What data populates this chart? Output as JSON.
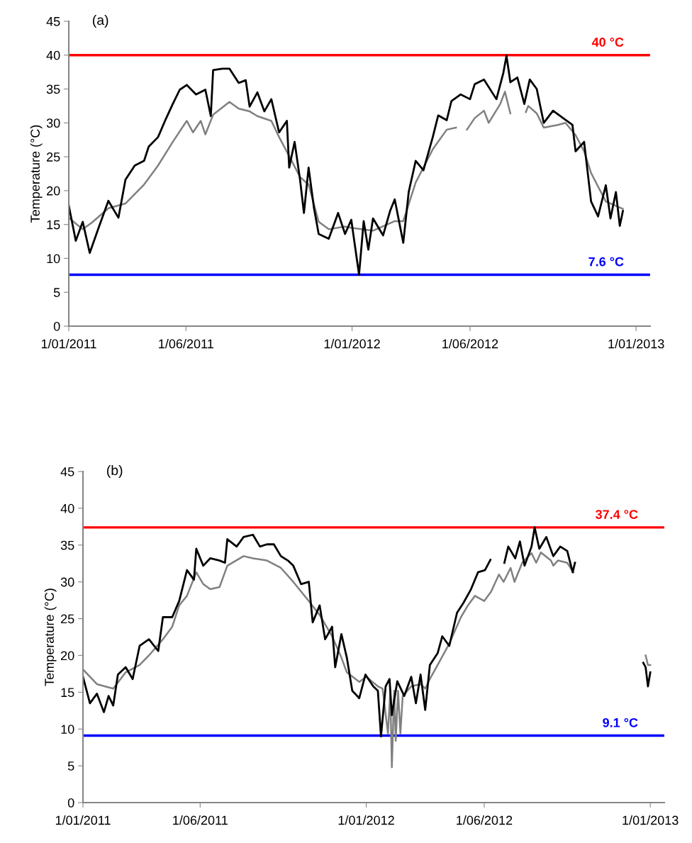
{
  "chart_data": [
    {
      "type": "line",
      "title": "(a)",
      "ylabel": "Temperature (°C)",
      "xlim": [
        "2011-01-01",
        "2013-01-19"
      ],
      "ylim": [
        0,
        45
      ],
      "yticks": [
        0,
        5,
        10,
        15,
        20,
        25,
        30,
        35,
        40,
        45
      ],
      "xticks": [
        {
          "value": "2011-01-01",
          "label": "1/01/2011"
        },
        {
          "value": "2011-06-01",
          "label": "1/06/2011"
        },
        {
          "value": "2012-01-01",
          "label": "1/01/2012"
        },
        {
          "value": "2012-06-01",
          "label": "1/06/2012"
        },
        {
          "value": "2013-01-01",
          "label": "1/01/2013"
        }
      ],
      "grid": false,
      "marker": "none",
      "line_style": "solid",
      "ref_lines": [
        {
          "axis": "y",
          "value": 40,
          "label": "40 °C",
          "color": "#ff0000"
        },
        {
          "axis": "y",
          "value": 7.6,
          "label": "7.6 °C",
          "color": "#0000ff"
        }
      ],
      "series": [
        {
          "color": "#808080",
          "x": [
            "2011-01-01",
            "2011-01-19",
            "2011-01-31",
            "2011-02-21",
            "2011-03-15",
            "2011-04-08",
            "2011-04-26",
            "2011-05-15",
            "2011-06-02",
            "2011-06-10",
            "2011-06-20",
            "2011-06-26",
            "2011-07-06",
            "2011-07-27",
            "2011-08-08",
            "2011-08-22",
            "2011-09-01",
            "2011-09-19",
            "2011-09-29",
            "2011-10-12",
            "2011-10-26",
            "2011-11-06",
            "2011-11-19",
            "2011-12-02",
            "2011-12-23",
            "2012-01-01",
            "2012-01-28",
            "2012-02-25",
            "2012-03-07",
            "2012-03-23",
            "2012-04-14",
            "2012-05-02",
            "2012-05-14",
            "2012-05-20",
            "2012-05-28",
            "2012-06-07",
            "2012-06-19",
            "2012-06-25",
            "2012-07-10",
            "2012-07-16",
            "2012-07-23",
            "2012-08-02",
            "2012-08-12",
            "2012-08-15",
            "2012-08-26",
            "2012-09-04",
            "2012-09-22",
            "2012-10-02",
            "2012-10-15",
            "2012-10-26",
            "2012-11-04",
            "2012-11-23",
            "2012-12-15"
          ],
          "values": [
            16,
            14.3,
            15.3,
            17.4,
            18.1,
            20.9,
            23.7,
            27.2,
            30.3,
            28.6,
            30.3,
            28.3,
            31.2,
            33.1,
            32.1,
            31.7,
            31,
            30.3,
            27.9,
            25.1,
            22,
            20.9,
            15.4,
            14.3,
            14.7,
            14.5,
            14.1,
            15.5,
            15.5,
            21.2,
            26.1,
            29,
            29.3,
            null,
            29,
            30.7,
            31.8,
            30,
            32.8,
            34.6,
            31.4,
            null,
            31.6,
            32.5,
            31.4,
            29.3,
            29.7,
            30,
            28.2,
            25.8,
            22.6,
            18.4,
            17.3
          ]
        },
        {
          "color": "#000000",
          "x": [
            "2011-01-01",
            "2011-01-10",
            "2011-01-19",
            "2011-01-28",
            "2011-02-09",
            "2011-02-21",
            "2011-03-06",
            "2011-03-15",
            "2011-03-27",
            "2011-04-08",
            "2011-04-14",
            "2011-04-26",
            "2011-05-05",
            "2011-05-15",
            "2011-05-24",
            "2011-06-02",
            "2011-06-14",
            "2011-06-26",
            "2011-07-03",
            "2011-07-06",
            "2011-07-18",
            "2011-07-27",
            "2011-08-08",
            "2011-08-17",
            "2011-08-22",
            "2011-09-01",
            "2011-09-10",
            "2011-09-19",
            "2011-09-29",
            "2011-10-09",
            "2011-10-12",
            "2011-10-19",
            "2011-10-26",
            "2011-10-31",
            "2011-11-06",
            "2011-11-13",
            "2011-11-19",
            "2011-12-02",
            "2011-12-14",
            "2011-12-23",
            "2011-12-31",
            "2012-01-10",
            "2012-01-16",
            "2012-01-22",
            "2012-01-28",
            "2012-02-10",
            "2012-02-19",
            "2012-02-25",
            "2012-03-07",
            "2012-03-14",
            "2012-03-23",
            "2012-04-02",
            "2012-04-14",
            "2012-04-21",
            "2012-05-02",
            "2012-05-08",
            "2012-05-20",
            "2012-06-01",
            "2012-06-07",
            "2012-06-19",
            "2012-07-05",
            "2012-07-14",
            "2012-07-18",
            "2012-07-23",
            "2012-08-01",
            "2012-08-10",
            "2012-08-17",
            "2012-08-26",
            "2012-09-04",
            "2012-09-16",
            "2012-09-29",
            "2012-10-11",
            "2012-10-15",
            "2012-10-26",
            "2012-11-04",
            "2012-11-13",
            "2012-11-23",
            "2012-11-29",
            "2012-12-06",
            "2012-12-11",
            "2012-12-15"
          ],
          "values": [
            17.8,
            12.6,
            15.4,
            10.8,
            14.7,
            18.5,
            16,
            21.6,
            23.7,
            24.4,
            26.5,
            27.9,
            30.3,
            32.8,
            34.9,
            35.6,
            34.2,
            34.9,
            31,
            37.8,
            38,
            38,
            35.9,
            36.3,
            32.4,
            34.5,
            31.7,
            33.5,
            28.6,
            30.3,
            23.4,
            27.2,
            21.6,
            16.7,
            23.4,
            17.4,
            13.6,
            12.9,
            16.7,
            13.6,
            15.7,
            7.6,
            15.5,
            11.3,
            15.9,
            13.4,
            17,
            18.7,
            12.3,
            19.8,
            24.4,
            23,
            27.9,
            31.1,
            30.4,
            33.2,
            34.2,
            33.5,
            35.7,
            36.4,
            33.5,
            37.4,
            39.9,
            36,
            36.7,
            32.8,
            36.4,
            35,
            30,
            31.8,
            30.7,
            29.7,
            25.8,
            27.2,
            18.4,
            16.2,
            20.8,
            15.9,
            19.8,
            14.8,
            17
          ]
        }
      ]
    },
    {
      "type": "line",
      "title": "(b)",
      "ylabel": "Temperature (°C)",
      "xlim": [
        "2011-01-01",
        "2013-01-19"
      ],
      "ylim": [
        0,
        45
      ],
      "yticks": [
        0,
        5,
        10,
        15,
        20,
        25,
        30,
        35,
        40,
        45
      ],
      "xticks": [
        {
          "value": "2011-01-01",
          "label": "1/01/2011"
        },
        {
          "value": "2011-06-01",
          "label": "1/06/2011"
        },
        {
          "value": "2012-01-01",
          "label": "1/01/2012"
        },
        {
          "value": "2012-06-01",
          "label": "1/06/2012"
        },
        {
          "value": "2013-01-01",
          "label": "1/01/2013"
        }
      ],
      "grid": false,
      "marker": "none",
      "line_style": "solid",
      "ref_lines": [
        {
          "axis": "y",
          "value": 37.4,
          "label": "37.4 °C",
          "color": "#ff0000"
        },
        {
          "axis": "y",
          "value": 9.1,
          "label": "9.1 °C",
          "color": "#0000ff"
        }
      ],
      "series": [
        {
          "color": "#808080",
          "x": [
            "2011-01-01",
            "2011-01-19",
            "2011-02-09",
            "2011-02-25",
            "2011-03-15",
            "2011-03-27",
            "2011-04-14",
            "2011-04-26",
            "2011-05-05",
            "2011-05-15",
            "2011-05-27",
            "2011-06-05",
            "2011-06-14",
            "2011-06-26",
            "2011-07-06",
            "2011-07-27",
            "2011-08-08",
            "2011-08-26",
            "2011-09-13",
            "2011-09-29",
            "2011-10-19",
            "2011-11-02",
            "2011-11-18",
            "2011-11-30",
            "2011-12-07",
            "2011-12-23",
            "2012-01-01",
            "2012-01-16",
            "2012-01-22",
            "2012-01-29",
            "2012-02-01",
            "2012-02-03",
            "2012-02-06",
            "2012-02-08",
            "2012-02-11",
            "2012-02-14",
            "2012-02-17",
            "2012-02-28",
            "2012-03-11",
            "2012-03-17",
            "2012-03-23",
            "2012-04-02",
            "2012-04-17",
            "2012-05-02",
            "2012-05-11",
            "2012-05-20",
            "2012-06-01",
            "2012-06-10",
            "2012-06-20",
            "2012-06-26",
            "2012-07-05",
            "2012-07-10",
            "2012-07-20",
            "2012-08-01",
            "2012-08-07",
            "2012-08-13",
            "2012-08-26",
            "2012-08-29",
            "2012-09-04",
            "2012-09-16",
            "2012-09-24",
            "2012-11-14",
            "2012-12-26",
            "2012-12-29",
            "2013-01-01"
          ],
          "values": [
            18.1,
            16.1,
            15.5,
            17.7,
            18.7,
            20,
            22.2,
            23.9,
            26.8,
            28.1,
            31.3,
            29.7,
            29,
            29.3,
            32.2,
            33.5,
            33.2,
            32.9,
            31.9,
            30,
            27.4,
            25.5,
            22.6,
            19.7,
            17.7,
            16.4,
            17.1,
            15.8,
            15.5,
            9.4,
            15.2,
            4.8,
            15.2,
            8.4,
            15.2,
            9.4,
            14.5,
            15.8,
            16.1,
            15.5,
            16.8,
            18.7,
            21.6,
            25.2,
            26.8,
            28.1,
            27.4,
            28.7,
            31,
            30,
            31.9,
            30,
            32.6,
            33.9,
            32.6,
            34,
            32.9,
            32.2,
            32.9,
            32.6,
            31.3,
            null,
            20,
            18.7,
            18.7
          ]
        },
        {
          "color": "#000000",
          "x": [
            "2011-01-01",
            "2011-01-10",
            "2011-01-19",
            "2011-01-28",
            "2011-02-03",
            "2011-02-09",
            "2011-02-15",
            "2011-02-25",
            "2011-03-06",
            "2011-03-15",
            "2011-03-27",
            "2011-04-08",
            "2011-04-14",
            "2011-04-26",
            "2011-05-05",
            "2011-05-15",
            "2011-05-24",
            "2011-05-27",
            "2011-06-05",
            "2011-06-14",
            "2011-06-26",
            "2011-07-03",
            "2011-07-06",
            "2011-07-18",
            "2011-07-27",
            "2011-08-08",
            "2011-08-17",
            "2011-08-26",
            "2011-09-04",
            "2011-09-13",
            "2011-09-22",
            "2011-09-29",
            "2011-10-09",
            "2011-10-19",
            "2011-10-24",
            "2011-11-02",
            "2011-11-09",
            "2011-11-18",
            "2011-11-22",
            "2011-11-30",
            "2011-12-07",
            "2011-12-14",
            "2011-12-23",
            "2011-12-31",
            "2012-01-10",
            "2012-01-16",
            "2012-01-20",
            "2012-01-26",
            "2012-01-31",
            "2012-02-03",
            "2012-02-10",
            "2012-02-19",
            "2012-02-28",
            "2012-03-05",
            "2012-03-11",
            "2012-03-17",
            "2012-03-23",
            "2012-04-02",
            "2012-04-08",
            "2012-04-17",
            "2012-04-27",
            "2012-05-05",
            "2012-05-15",
            "2012-05-24",
            "2012-06-02",
            "2012-06-09",
            "2012-06-18",
            "2012-06-27",
            "2012-07-02",
            "2012-07-11",
            "2012-07-17",
            "2012-07-23",
            "2012-08-01",
            "2012-08-05",
            "2012-08-11",
            "2012-08-20",
            "2012-08-29",
            "2012-09-07",
            "2012-09-16",
            "2012-09-23",
            "2012-09-26",
            "2012-11-14",
            "2012-12-23",
            "2012-12-26",
            "2012-12-29",
            "2013-01-01"
          ],
          "values": [
            17.1,
            13.5,
            14.8,
            12.3,
            14.5,
            13.2,
            17.4,
            18.4,
            16.8,
            21.3,
            22.2,
            20.6,
            25.2,
            25.2,
            27.4,
            31.6,
            30.3,
            34.5,
            32.2,
            33.2,
            32.9,
            32.6,
            35.8,
            34.8,
            36.1,
            36.4,
            34.8,
            35.1,
            35.1,
            33.5,
            32.9,
            32.2,
            29.7,
            30,
            24.5,
            26.8,
            22.2,
            23.9,
            18.4,
            22.9,
            19.7,
            15.2,
            14.2,
            17.4,
            15.8,
            15.2,
            9.0,
            15.8,
            16.8,
            11.9,
            16.5,
            14.5,
            17.1,
            13.5,
            17.4,
            12.6,
            18.7,
            20.3,
            22.6,
            21.3,
            25.8,
            27.1,
            29,
            31.3,
            31.6,
            33.0,
            null,
            32.6,
            34.8,
            33.2,
            35.5,
            32.2,
            34.8,
            37.4,
            34.5,
            36.1,
            33.5,
            34.8,
            34.2,
            31.3,
            32.6,
            null,
            19,
            18.4,
            15.8,
            17.7
          ]
        }
      ]
    }
  ]
}
